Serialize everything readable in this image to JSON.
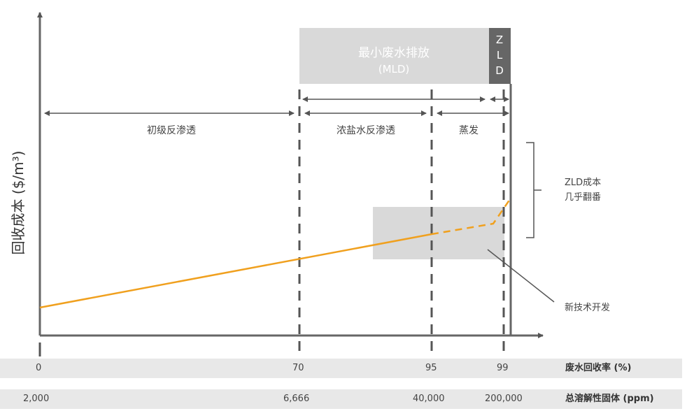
{
  "y_axis_label": "回收成本 ($/m³)",
  "zones": {
    "mld_title": "最小废水排放",
    "mld_sub": "(MLD)",
    "zld_letters": [
      "Z",
      "L",
      "D"
    ]
  },
  "processes": {
    "primary_ro": "初级反渗透",
    "brine_ro": "浓盐水反渗透",
    "evaporation": "蒸发"
  },
  "annotations": {
    "zld_cost_line1": "ZLD成本",
    "zld_cost_line2": "几乎翻番",
    "new_tech": "新技术开发"
  },
  "recovery_row": {
    "label": "废水回收率 (%)",
    "ticks": [
      "0",
      "70",
      "95",
      "99"
    ]
  },
  "tds_row": {
    "label": "总溶解性固体 (ppm)",
    "ticks": [
      "2,000",
      "6,666",
      "40,000",
      "200,000"
    ]
  },
  "colors": {
    "curve": "#f0a01e",
    "axis": "#666666",
    "zone_fill": "#d9d9d9",
    "zld_fill": "#666666",
    "highlight_fill": "#d9d9d9"
  }
}
